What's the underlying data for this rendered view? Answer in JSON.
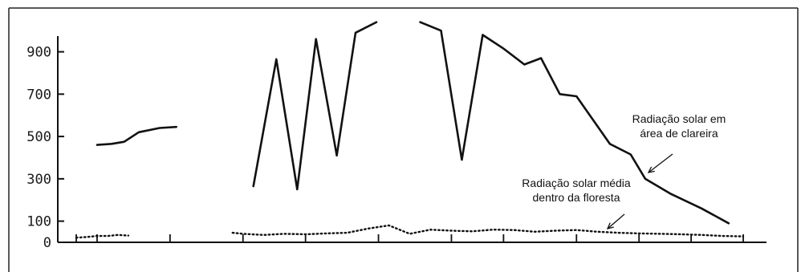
{
  "chart_data": {
    "type": "line",
    "title": "",
    "xlabel": "",
    "ylabel": "",
    "ylim": [
      0,
      1050
    ],
    "xlim": [
      0,
      33
    ],
    "y_ticks": [
      {
        "value": 0,
        "label": "0"
      },
      {
        "value": 100,
        "label": "100"
      },
      {
        "value": 300,
        "label": "300"
      },
      {
        "value": 500,
        "label": "500"
      },
      {
        "value": 700,
        "label": "700"
      },
      {
        "value": 900,
        "label": "900"
      }
    ],
    "series": [
      {
        "name": "Radiação solar em área de clareira",
        "style": "solid",
        "color": "#111111",
        "segments": [
          [
            [
              1,
              460
            ],
            [
              1.7,
              465
            ],
            [
              2.3,
              475
            ],
            [
              3,
              520
            ],
            [
              4,
              540
            ],
            [
              4.8,
              545
            ]
          ],
          [
            [
              8.5,
              265
            ],
            [
              9.6,
              865
            ],
            [
              10.6,
              250
            ],
            [
              11.5,
              960
            ],
            [
              12.5,
              410
            ],
            [
              13.4,
              990
            ],
            [
              14.4,
              1040
            ]
          ],
          [
            [
              16.5,
              1040
            ],
            [
              17.5,
              1000
            ],
            [
              18.5,
              390
            ],
            [
              19.5,
              980
            ],
            [
              20.5,
              915
            ],
            [
              21.5,
              840
            ],
            [
              22.3,
              870
            ],
            [
              23.2,
              700
            ],
            [
              24,
              690
            ],
            [
              25.6,
              465
            ],
            [
              26.6,
              415
            ],
            [
              27.3,
              300
            ],
            [
              28.5,
              230
            ],
            [
              30,
              160
            ],
            [
              31.3,
              90
            ]
          ]
        ]
      },
      {
        "name": "Radiação solar média dentro da floresta",
        "style": "dotted",
        "color": "#111111",
        "segments": [
          [
            [
              0,
              22
            ],
            [
              0.5,
              25
            ],
            [
              1,
              30
            ],
            [
              1.5,
              30
            ],
            [
              2,
              35
            ],
            [
              2.5,
              32
            ]
          ],
          [
            [
              7.5,
              45
            ],
            [
              8,
              40
            ],
            [
              9,
              35
            ],
            [
              10,
              40
            ],
            [
              11,
              38
            ],
            [
              12,
              42
            ],
            [
              13,
              45
            ],
            [
              14,
              65
            ],
            [
              15,
              80
            ],
            [
              16,
              40
            ],
            [
              17,
              60
            ],
            [
              18,
              55
            ],
            [
              19,
              52
            ],
            [
              20,
              60
            ],
            [
              21,
              58
            ],
            [
              22,
              50
            ],
            [
              23,
              55
            ],
            [
              24,
              58
            ],
            [
              25,
              50
            ],
            [
              26,
              45
            ],
            [
              27,
              42
            ],
            [
              28,
              40
            ],
            [
              29,
              38
            ],
            [
              30,
              35
            ],
            [
              31,
              30
            ],
            [
              32,
              28
            ]
          ]
        ]
      }
    ],
    "annotations": [
      {
        "lines": [
          "Radiação solar em",
          "área de clareira"
        ],
        "target_series": 0
      },
      {
        "lines": [
          "Radiação solar média",
          "dentro da floresta"
        ],
        "target_series": 1
      }
    ],
    "grid": false,
    "legend": "none"
  }
}
